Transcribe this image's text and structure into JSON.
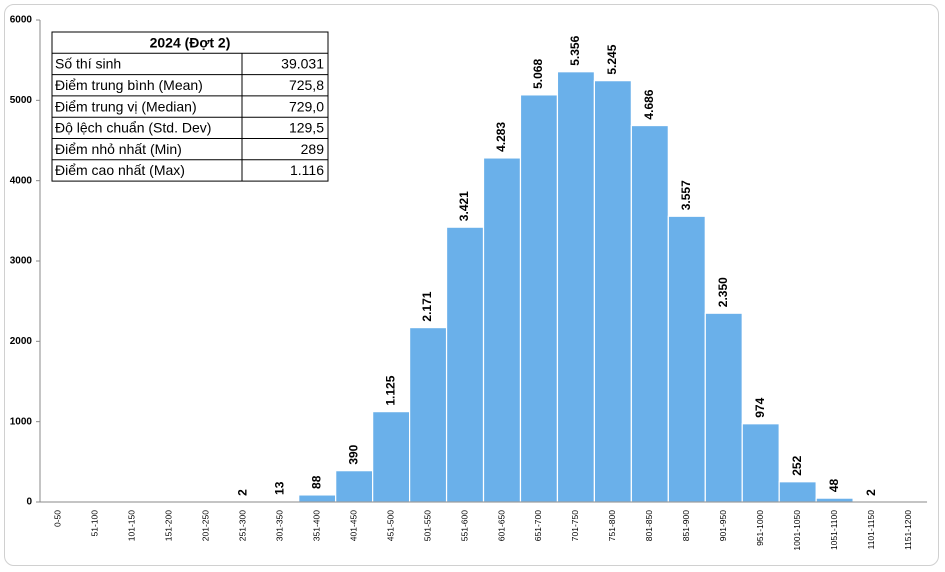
{
  "chart_data": {
    "type": "bar",
    "categories": [
      "0-50",
      "51-100",
      "101-150",
      "151-200",
      "201-250",
      "251-300",
      "301-350",
      "351-400",
      "401-450",
      "451-500",
      "501-550",
      "551-600",
      "601-650",
      "651-700",
      "701-750",
      "751-800",
      "801-850",
      "851-900",
      "901-950",
      "951-1000",
      "1001-1050",
      "1051-1100",
      "1101-1150",
      "1151-1200"
    ],
    "values": [
      0,
      0,
      0,
      0,
      0,
      2,
      13,
      88,
      390,
      1125,
      2171,
      3421,
      4283,
      5068,
      5356,
      5245,
      4686,
      3557,
      2350,
      974,
      252,
      48,
      2,
      0
    ],
    "value_labels": [
      null,
      null,
      null,
      null,
      null,
      "2",
      "13",
      "88",
      "390",
      "1.125",
      "2.171",
      "3.421",
      "4.283",
      "5.068",
      "5.356",
      "5.245",
      "4.686",
      "3.557",
      "2.350",
      "974",
      "252",
      "48",
      "2",
      null
    ],
    "color": "#6ab0ea",
    "ylim": [
      0,
      6000
    ],
    "yticks": [
      0,
      1000,
      2000,
      3000,
      4000,
      5000,
      6000
    ],
    "grid": false,
    "table": {
      "title": "2024 (Đợt 2)",
      "rows": [
        [
          "Số thí sinh",
          "39.031"
        ],
        [
          "Điểm trung bình (Mean)",
          "725,8"
        ],
        [
          "Điểm trung vị (Median)",
          "729,0"
        ],
        [
          "Độ lệch chuẩn (Std. Dev)",
          "129,5"
        ],
        [
          "Điểm nhỏ nhất (Min)",
          "289"
        ],
        [
          "Điểm cao nhất (Max)",
          "1.116"
        ]
      ]
    }
  }
}
